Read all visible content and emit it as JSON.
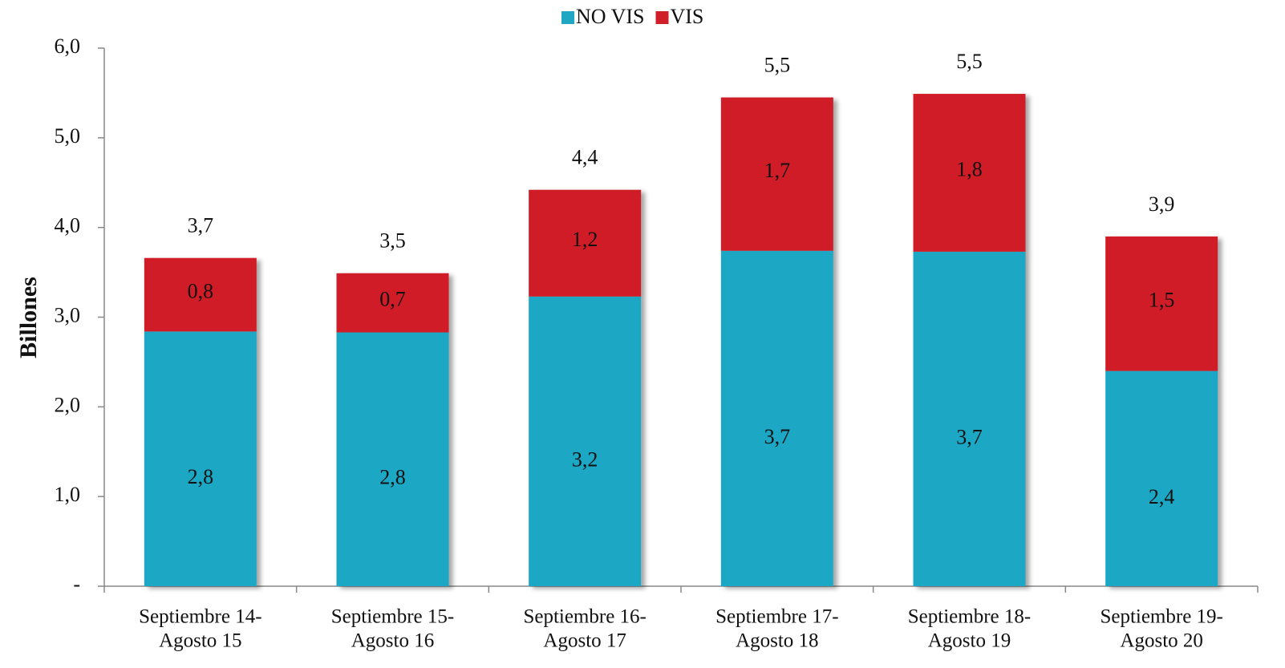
{
  "chart_data": {
    "type": "stacked_bar",
    "y_label": "Billones",
    "categories": [
      [
        "Septiembre 14-",
        "Agosto 15"
      ],
      [
        "Septiembre 15-",
        "Agosto 16"
      ],
      [
        "Septiembre 16-",
        "Agosto 17"
      ],
      [
        "Septiembre 17-",
        "Agosto 18"
      ],
      [
        "Septiembre 18-",
        "Agosto 19"
      ],
      [
        "Septiembre 19-",
        "Agosto 20"
      ]
    ],
    "series": [
      {
        "name": "NO VIS",
        "color": "#1fa7c4",
        "values": [
          2.84,
          2.83,
          3.23,
          3.74,
          3.73,
          2.4
        ],
        "value_labels": [
          "2,8",
          "2,8",
          "3,2",
          "3,7",
          "3,7",
          "2,4"
        ]
      },
      {
        "name": "VIS",
        "color": "#d01f28",
        "values": [
          0.82,
          0.66,
          1.19,
          1.71,
          1.76,
          1.5
        ],
        "value_labels": [
          "0,8",
          "0,7",
          "1,2",
          "1,7",
          "1,8",
          "1,5"
        ]
      }
    ],
    "totals": [
      3.66,
      3.49,
      4.42,
      5.45,
      5.49,
      3.9
    ],
    "total_labels": [
      "3,7",
      "3,5",
      "4,4",
      "5,5",
      "5,5",
      "3,9"
    ],
    "ylim": [
      0,
      6
    ],
    "yticks": [
      {
        "value": 0,
        "label": "-"
      },
      {
        "value": 1,
        "label": "1,0"
      },
      {
        "value": 2,
        "label": "2,0"
      },
      {
        "value": 3,
        "label": "3,0"
      },
      {
        "value": 4,
        "label": "4,0"
      },
      {
        "value": 5,
        "label": "5,0"
      },
      {
        "value": 6,
        "label": "6,0"
      }
    ],
    "legend": "top"
  }
}
